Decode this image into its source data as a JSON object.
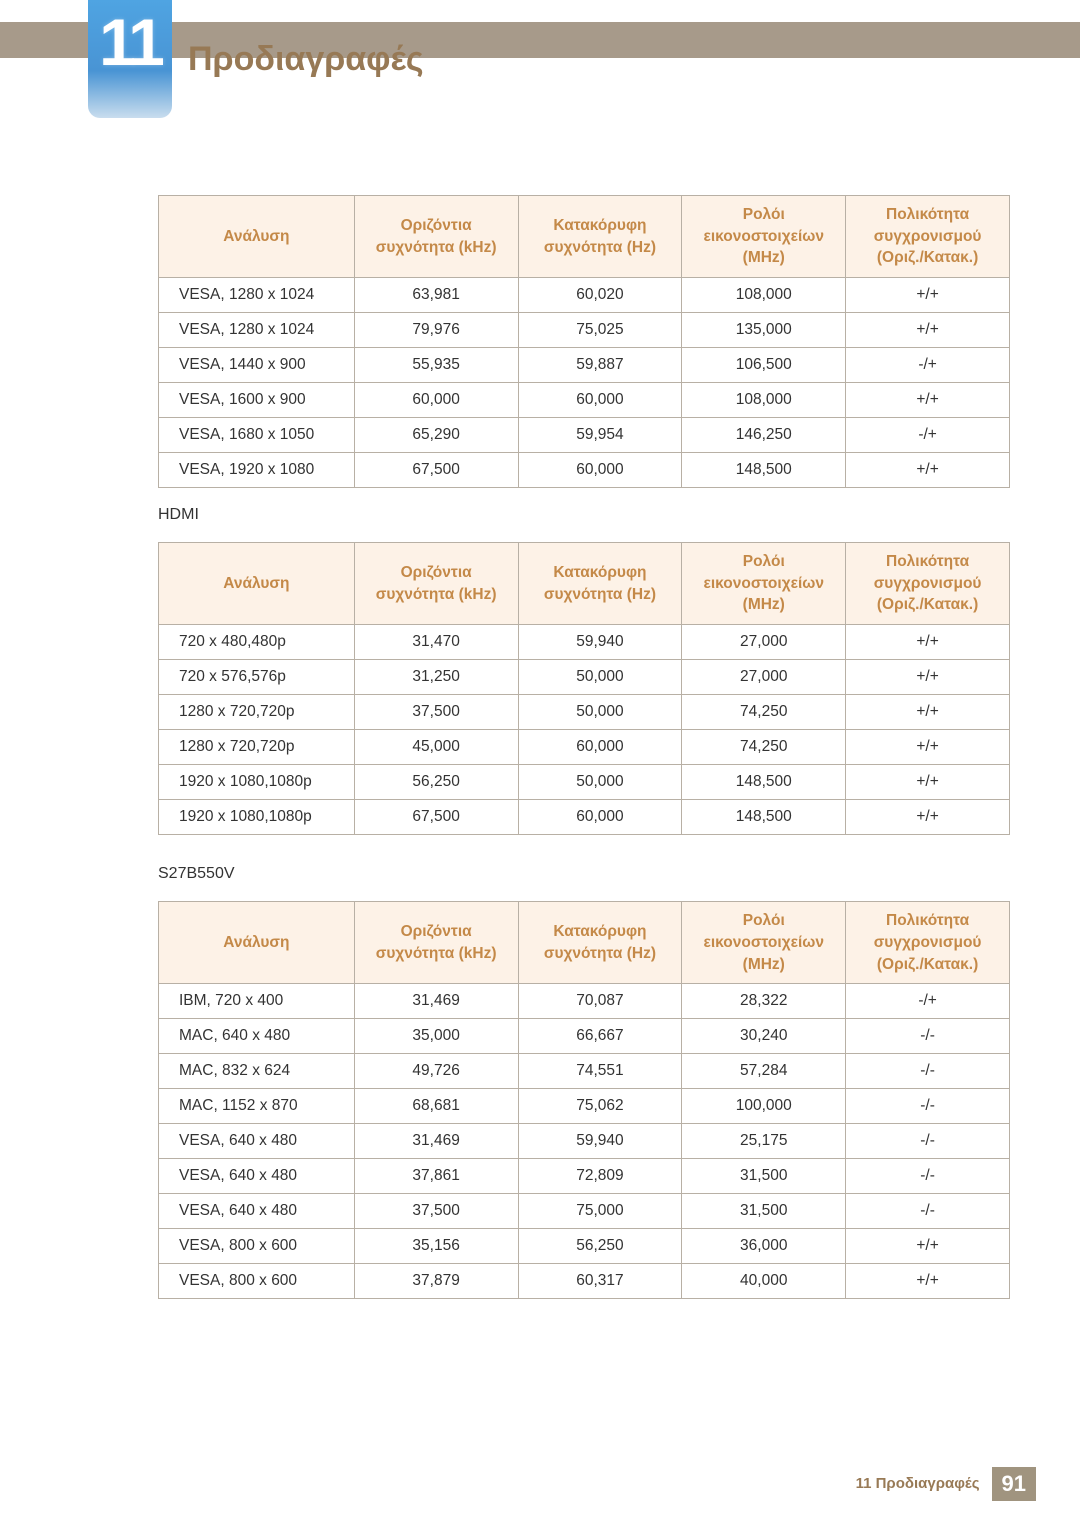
{
  "colors": {
    "top_bar": "#a79a8a",
    "badge_gradient_top": "#4fa4e2",
    "badge_gradient_bottom": "#c9ddee",
    "heading": "#977955",
    "table_header_bg": "#fdf2e7",
    "table_header_fg": "#c48948",
    "table_border": "#b8b0a5",
    "footer_text": "#987a56",
    "footer_page_bg": "#a0947f"
  },
  "chapter": {
    "number": "11",
    "title": "Προδιαγραφές"
  },
  "headers": {
    "resolution": "Ανάλυση",
    "hfreq": "Οριζόντια συχνότητα (kHz)",
    "vfreq": "Κατακόρυφη συχνότητα (Hz)",
    "pclock": "Ρολόι εικονοστοιχείων (MHz)",
    "polarity": "Πολικότητα συγχρονισμού (Οριζ./Κατακ.)"
  },
  "table1": {
    "rows": [
      {
        "r": "VESA, 1280 x 1024",
        "h": "63,981",
        "v": "60,020",
        "p": "108,000",
        "s": "+/+"
      },
      {
        "r": "VESA, 1280 x 1024",
        "h": "79,976",
        "v": "75,025",
        "p": "135,000",
        "s": "+/+"
      },
      {
        "r": "VESA, 1440 x 900",
        "h": "55,935",
        "v": "59,887",
        "p": "106,500",
        "s": "-/+"
      },
      {
        "r": "VESA, 1600 x 900",
        "h": "60,000",
        "v": "60,000",
        "p": "108,000",
        "s": "+/+"
      },
      {
        "r": "VESA, 1680 x 1050",
        "h": "65,290",
        "v": "59,954",
        "p": "146,250",
        "s": "-/+"
      },
      {
        "r": "VESA, 1920 x 1080",
        "h": "67,500",
        "v": "60,000",
        "p": "148,500",
        "s": "+/+"
      }
    ]
  },
  "labels": {
    "hdmi": "HDMI",
    "model": "S27B550V"
  },
  "table2": {
    "rows": [
      {
        "r": "720 x 480,480p",
        "h": "31,470",
        "v": "59,940",
        "p": "27,000",
        "s": "+/+"
      },
      {
        "r": "720 x 576,576p",
        "h": "31,250",
        "v": "50,000",
        "p": "27,000",
        "s": "+/+"
      },
      {
        "r": "1280 x 720,720p",
        "h": "37,500",
        "v": "50,000",
        "p": "74,250",
        "s": "+/+"
      },
      {
        "r": "1280 x 720,720p",
        "h": "45,000",
        "v": "60,000",
        "p": "74,250",
        "s": "+/+"
      },
      {
        "r": "1920 x 1080,1080p",
        "h": "56,250",
        "v": "50,000",
        "p": "148,500",
        "s": "+/+"
      },
      {
        "r": "1920 x 1080,1080p",
        "h": "67,500",
        "v": "60,000",
        "p": "148,500",
        "s": "+/+"
      }
    ]
  },
  "table3": {
    "rows": [
      {
        "r": "IBM, 720 x 400",
        "h": "31,469",
        "v": "70,087",
        "p": "28,322",
        "s": "-/+"
      },
      {
        "r": "MAC, 640 x 480",
        "h": "35,000",
        "v": "66,667",
        "p": "30,240",
        "s": "-/-"
      },
      {
        "r": "MAC, 832 x 624",
        "h": "49,726",
        "v": "74,551",
        "p": "57,284",
        "s": "-/-"
      },
      {
        "r": "MAC, 1152 x 870",
        "h": "68,681",
        "v": "75,062",
        "p": "100,000",
        "s": "-/-"
      },
      {
        "r": "VESA, 640 x 480",
        "h": "31,469",
        "v": "59,940",
        "p": "25,175",
        "s": "-/-"
      },
      {
        "r": "VESA, 640 x 480",
        "h": "37,861",
        "v": "72,809",
        "p": "31,500",
        "s": "-/-"
      },
      {
        "r": "VESA, 640 x 480",
        "h": "37,500",
        "v": "75,000",
        "p": "31,500",
        "s": "-/-"
      },
      {
        "r": "VESA, 800 x 600",
        "h": "35,156",
        "v": "56,250",
        "p": "36,000",
        "s": "+/+"
      },
      {
        "r": "VESA, 800 x 600",
        "h": "37,879",
        "v": "60,317",
        "p": "40,000",
        "s": "+/+"
      }
    ]
  },
  "footer": {
    "text": "11 Προδιαγραφές",
    "page": "91"
  }
}
